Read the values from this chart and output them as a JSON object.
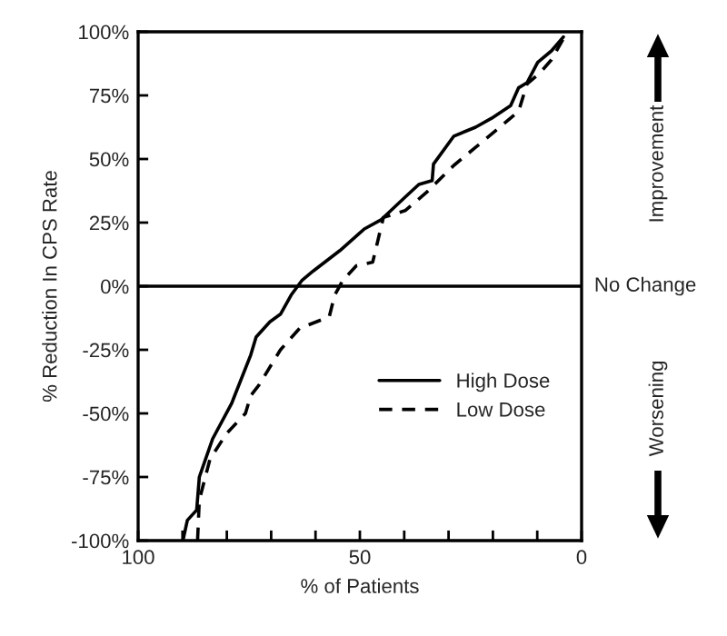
{
  "chart_data": {
    "type": "line",
    "xlabel": "% of Patients",
    "ylabel": "% Reduction In CPS Rate",
    "xlim": [
      100,
      0
    ],
    "ylim": [
      -100,
      100
    ],
    "xticks": [
      100,
      {
        "value": 90,
        "label": null
      },
      {
        "value": 80,
        "label": null
      },
      {
        "value": 70,
        "label": null
      },
      {
        "value": 60,
        "label": null
      },
      50,
      {
        "value": 40,
        "label": null
      },
      {
        "value": 30,
        "label": null
      },
      {
        "value": 20,
        "label": null
      },
      {
        "value": 10,
        "label": null
      },
      0
    ],
    "yticks": [
      {
        "value": -100,
        "label": "-100%"
      },
      {
        "value": -75,
        "label": "-75%"
      },
      {
        "value": -50,
        "label": "-50%"
      },
      {
        "value": -25,
        "label": "-25%"
      },
      {
        "value": 0,
        "label": "0%"
      },
      {
        "value": 25,
        "label": "25%"
      },
      {
        "value": 50,
        "label": "50%"
      },
      {
        "value": 75,
        "label": "75%"
      },
      {
        "value": 100,
        "label": "100%"
      }
    ],
    "series": [
      {
        "name": "High Dose",
        "color": "#000000",
        "line_style": "solid",
        "x": [
          89.9,
          88.9,
          86.8,
          86.2,
          83.2,
          78.9,
          74.6,
          73.4,
          70.3,
          67.9,
          65.5,
          63,
          60.5,
          54.5,
          49,
          45.3,
          39.8,
          36.7,
          33.7,
          33.4,
          28.8,
          23.9,
          20.3,
          16,
          14.2,
          12.3,
          9.9,
          6.8,
          4.1
        ],
        "values": [
          -100,
          -92,
          -88,
          -75,
          -60,
          -46,
          -27,
          -20,
          -14,
          -11,
          -3.5,
          2.4,
          6,
          14,
          22.5,
          26,
          35,
          40,
          41.5,
          48,
          59,
          62.5,
          66,
          71,
          78,
          80,
          88,
          92.5,
          98
        ]
      },
      {
        "name": "Low Dose",
        "color": "#000000",
        "line_style": "dashed",
        "x": [
          86.6,
          86.2,
          83.8,
          80.1,
          75.8,
          74.6,
          72.8,
          67.9,
          63.6,
          56.9,
          55.7,
          53.8,
          50.8,
          47.1,
          44.7,
          39.8,
          34.9,
          28.8,
          23.9,
          19,
          14.2,
          12.3,
          9.3,
          6.8,
          4.1
        ],
        "values": [
          -100,
          -84,
          -68,
          -58,
          -50,
          -43,
          -39,
          -25,
          -16.6,
          -12,
          -3.6,
          2.4,
          8,
          9.5,
          27,
          29.7,
          37,
          47.5,
          54.6,
          61.7,
          68.8,
          79.5,
          84,
          89,
          97.3
        ]
      }
    ],
    "ref_lines": [
      {
        "axis": "y",
        "value": 0,
        "label": "No Change",
        "color": "#000000"
      }
    ],
    "annotations": [
      "Improvement",
      "Worsening"
    ],
    "legend": "lower right",
    "grid": false,
    "marker": "none"
  }
}
